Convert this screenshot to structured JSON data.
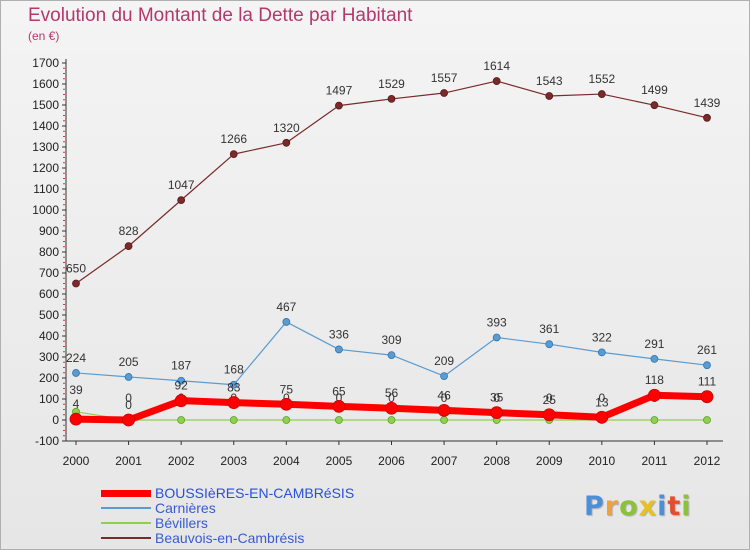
{
  "title": "Evolution du Montant de la Dette par Habitant",
  "unit": "(en €)",
  "logo": {
    "text": "Proxiti",
    "colors": [
      "#4a8fd8",
      "#f0a03c",
      "#8ac23a",
      "#e8c020",
      "#4a8fd8",
      "#e05030",
      "#8ac23a"
    ]
  },
  "chart_data": {
    "type": "line",
    "x": [
      "2000",
      "2001",
      "2002",
      "2003",
      "2004",
      "2005",
      "2006",
      "2007",
      "2008",
      "2009",
      "2010",
      "2011",
      "2012"
    ],
    "ylim": [
      -100,
      1700
    ],
    "yticks": [
      -100,
      0,
      100,
      200,
      300,
      400,
      500,
      600,
      700,
      800,
      900,
      1000,
      1100,
      1200,
      1300,
      1400,
      1500,
      1600,
      1700
    ],
    "grid": false,
    "legend_position": "bottom-left",
    "series": [
      {
        "name": "Beauvois-en-Cambrésis",
        "color": "#7a2a2a",
        "values": [
          650,
          828,
          1047,
          1266,
          1320,
          1497,
          1529,
          1557,
          1614,
          1543,
          1552,
          1499,
          1439
        ]
      },
      {
        "name": "Carnières",
        "color": "#5b9bd0",
        "values": [
          224,
          205,
          187,
          168,
          467,
          336,
          309,
          209,
          393,
          361,
          322,
          291,
          261
        ]
      },
      {
        "name": "Bévillers",
        "color": "#90d050",
        "values": [
          39,
          0,
          0,
          0,
          0,
          0,
          0,
          0,
          0,
          0,
          0,
          0,
          0
        ]
      },
      {
        "name": "BOUSSIèRES-EN-CAMBRéSIS",
        "color": "#ff0000",
        "values": [
          4,
          0,
          92,
          83,
          75,
          65,
          56,
          46,
          35,
          25,
          13,
          118,
          111
        ]
      }
    ]
  }
}
